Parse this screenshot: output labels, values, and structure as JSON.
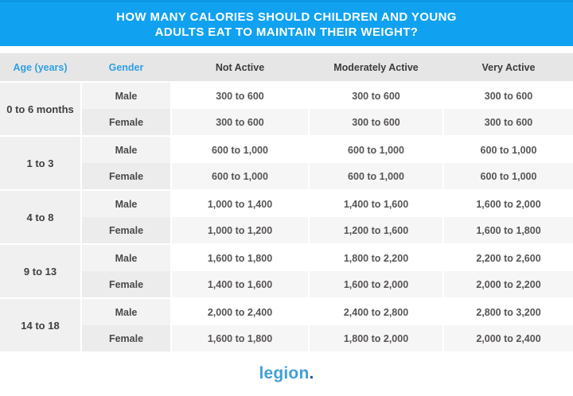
{
  "banner": {
    "title_line1": "HOW MANY CALORIES SHOULD CHILDREN AND YOUNG",
    "title_line2": "ADULTS EAT TO MAINTAIN THEIR WEIGHT?"
  },
  "table": {
    "headers": {
      "age": "Age (years)",
      "gender": "Gender",
      "not_active": "Not Active",
      "moderately_active": "Moderately Active",
      "very_active": "Very Active"
    },
    "groups": [
      {
        "age": "0 to 6 months",
        "rows": [
          {
            "gender": "Male",
            "not_active": "300 to 600",
            "moderately_active": "300 to 600",
            "very_active": "300 to 600"
          },
          {
            "gender": "Female",
            "not_active": "300 to 600",
            "moderately_active": "300 to 600",
            "very_active": "300 to 600"
          }
        ]
      },
      {
        "age": "1 to 3",
        "rows": [
          {
            "gender": "Male",
            "not_active": "600 to 1,000",
            "moderately_active": "600 to 1,000",
            "very_active": "600 to 1,000"
          },
          {
            "gender": "Female",
            "not_active": "600 to 1,000",
            "moderately_active": "600 to 1,000",
            "very_active": "600 to 1,000"
          }
        ]
      },
      {
        "age": "4 to 8",
        "rows": [
          {
            "gender": "Male",
            "not_active": "1,000 to 1,400",
            "moderately_active": "1,400 to 1,600",
            "very_active": "1,600 to 2,000"
          },
          {
            "gender": "Female",
            "not_active": "1,000 to 1,200",
            "moderately_active": "1,200 to 1,600",
            "very_active": "1,600 to 1,800"
          }
        ]
      },
      {
        "age": "9 to 13",
        "rows": [
          {
            "gender": "Male",
            "not_active": "1,600 to 1,800",
            "moderately_active": "1,800 to 2,200",
            "very_active": "2,200 to 2,600"
          },
          {
            "gender": "Female",
            "not_active": "1,400 to 1,600",
            "moderately_active": "1,600 to 2,000",
            "very_active": "2,000 to 2,200"
          }
        ]
      },
      {
        "age": "14 to 18",
        "rows": [
          {
            "gender": "Male",
            "not_active": "2,000 to 2,400",
            "moderately_active": "2,400 to 2,800",
            "very_active": "2,800 to 3,200"
          },
          {
            "gender": "Female",
            "not_active": "1,600 to 1,800",
            "moderately_active": "1,800 to 2,000",
            "very_active": "2,000 to 2,400"
          }
        ]
      }
    ]
  },
  "footer": {
    "logo_text": "legion",
    "logo_period": "."
  },
  "colors": {
    "banner_blue": "#10a2f0",
    "header_accent_blue": "#2e9fe2",
    "logo_blue": "#429fd9",
    "logo_period_navy": "#28587e",
    "header_row_gray": "#e7e6e6",
    "age_cell_gray": "#f1f0f0",
    "female_row_gray": "#f7f6f6"
  }
}
